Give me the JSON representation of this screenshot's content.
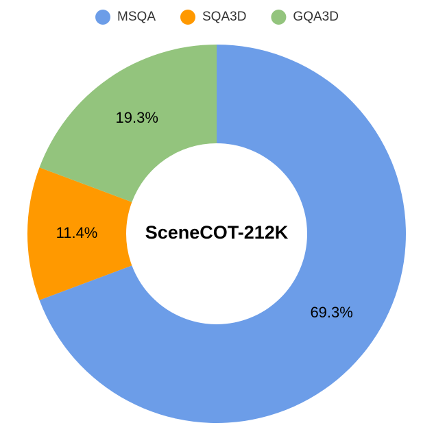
{
  "chart_data": {
    "type": "pie",
    "variant": "donut",
    "center_label": "SceneCOT-212K",
    "legend_position": "top",
    "slices": [
      {
        "name": "MSQA",
        "value": 69.3,
        "label": "69.3%",
        "color": "#6c9de8"
      },
      {
        "name": "SQA3D",
        "value": 11.4,
        "label": "11.4%",
        "color": "#ff9900"
      },
      {
        "name": "GQA3D",
        "value": 19.3,
        "label": "19.3%",
        "color": "#93c47d"
      }
    ]
  }
}
